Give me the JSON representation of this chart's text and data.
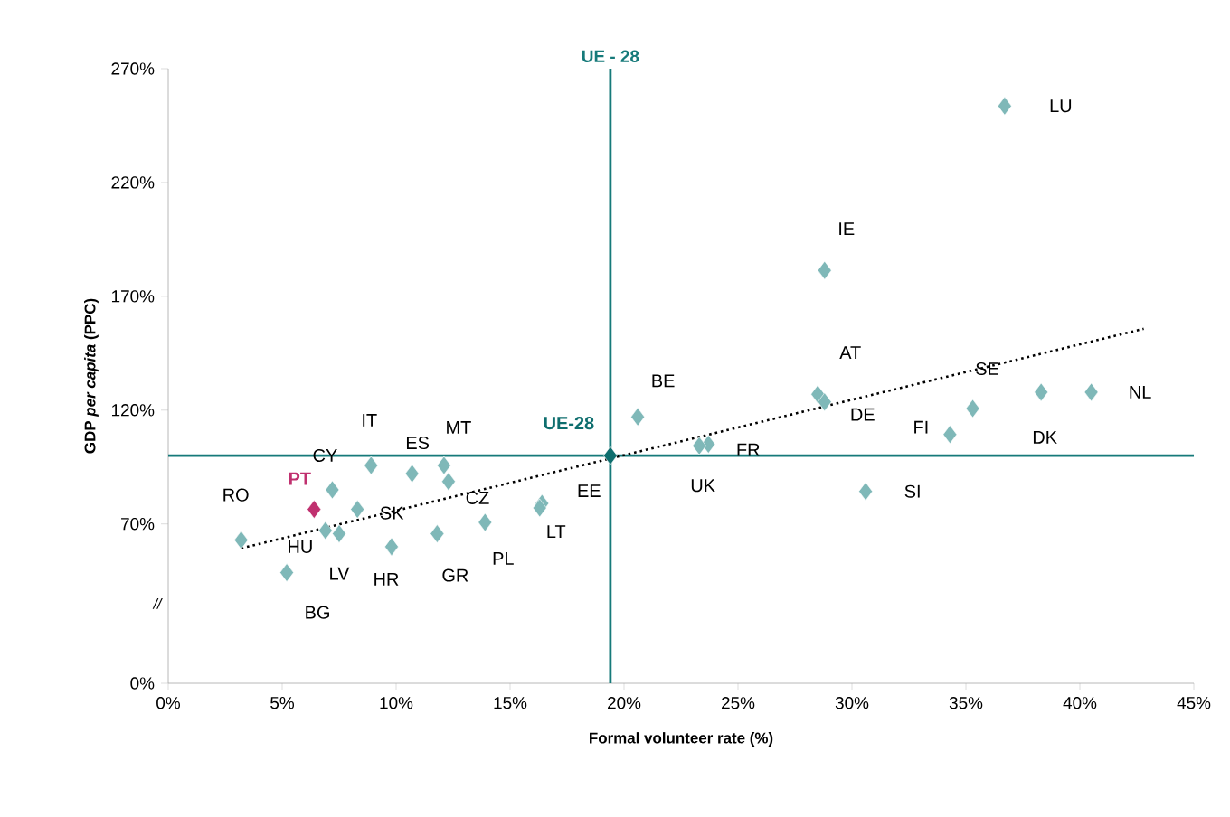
{
  "chart_data": {
    "type": "scatter",
    "xlabel": "Formal volunteer rate (%)",
    "ylabel": "GDP *per capita* (PPC)",
    "xlim": [
      0,
      45
    ],
    "ylim": [
      0,
      270
    ],
    "xticks": [
      {
        "value": 0,
        "label": "0%"
      },
      {
        "value": 5,
        "label": "5%"
      },
      {
        "value": 10,
        "label": "10%"
      },
      {
        "value": 15,
        "label": "15%"
      },
      {
        "value": 20,
        "label": "20%"
      },
      {
        "value": 25,
        "label": "25%"
      },
      {
        "value": 30,
        "label": "30%"
      },
      {
        "value": 35,
        "label": "35%"
      },
      {
        "value": 40,
        "label": "40%"
      },
      {
        "value": 45,
        "label": "45%"
      }
    ],
    "yticks": [
      {
        "value": 0,
        "label": "0%"
      },
      {
        "value": 70,
        "label": "70%"
      },
      {
        "value": 120,
        "label": "120%"
      },
      {
        "value": 170,
        "label": "170%"
      },
      {
        "value": 220,
        "label": "220%"
      },
      {
        "value": 270,
        "label": "270%"
      }
    ],
    "marker": "diamond",
    "grid": false,
    "legend": false,
    "series": [
      {
        "color": "#7fb8b8",
        "x": [
          36.7,
          28.8,
          20.6,
          28.5,
          28.8,
          35.3,
          38.3,
          40.5,
          34.3,
          23.7,
          23.3,
          30.6,
          8.9,
          10.7,
          12.1,
          12.3,
          7.2,
          8.3,
          6.9,
          7.5,
          5.2,
          9.8,
          11.8,
          13.9,
          3.2,
          16.4,
          16.3
        ],
        "values": [
          253.6,
          181.4,
          117,
          127,
          123.6,
          120.7,
          127.9,
          127.9,
          109.3,
          105,
          104.3,
          84.3,
          95.7,
          92.1,
          95.7,
          88.6,
          85,
          76.4,
          67.1,
          65.7,
          48.6,
          60,
          65.7,
          70.7,
          62.9,
          79,
          77
        ]
      },
      {
        "name": "PT",
        "color": "#c0306f",
        "x": [
          6.4
        ],
        "values": [
          76.4
        ]
      },
      {
        "name": "UE-28",
        "color": "#0e6e6e",
        "x": [
          19.4
        ],
        "values": [
          100
        ]
      },
      {
        "type": "line",
        "color": "#000000",
        "line_style": "dotted",
        "marker": "none",
        "x": [
          3.2,
          42.8
        ],
        "values": [
          59.3,
          155.7
        ]
      }
    ],
    "ref_lines": [
      {
        "axis": "x",
        "value": 19.4,
        "label": "UE - 28",
        "color": "#167a7a"
      },
      {
        "axis": "y",
        "value": 100,
        "color": "#167a7a"
      }
    ],
    "annotations": [
      {
        "text": "LU",
        "x": 36.7,
        "y": 253.6
      },
      {
        "text": "IE",
        "x": 28.8,
        "y": 181.4
      },
      {
        "text": "BE",
        "x": 20.6,
        "y": 117
      },
      {
        "text": "AT",
        "x": 28.5,
        "y": 127
      },
      {
        "text": "DE",
        "x": 28.8,
        "y": 123.6
      },
      {
        "text": "SE",
        "x": 35.3,
        "y": 120.7
      },
      {
        "text": "DK",
        "x": 38.3,
        "y": 127.9
      },
      {
        "text": "NL",
        "x": 40.5,
        "y": 127.9
      },
      {
        "text": "FI",
        "x": 34.3,
        "y": 109.3
      },
      {
        "text": "FR",
        "x": 23.7,
        "y": 105
      },
      {
        "text": "UK",
        "x": 23.3,
        "y": 104.3
      },
      {
        "text": "SI",
        "x": 30.6,
        "y": 84.3
      },
      {
        "text": "IT",
        "x": 8.9,
        "y": 95.7
      },
      {
        "text": "ES",
        "x": 10.7,
        "y": 92.1
      },
      {
        "text": "MT",
        "x": 12.1,
        "y": 95.7
      },
      {
        "text": "CZ",
        "x": 12.3,
        "y": 88.6
      },
      {
        "text": "CY",
        "x": 7.2,
        "y": 85
      },
      {
        "text": "SK",
        "x": 8.3,
        "y": 76.4
      },
      {
        "text": "HU",
        "x": 6.9,
        "y": 67.1
      },
      {
        "text": "LV",
        "x": 7.5,
        "y": 65.7
      },
      {
        "text": "BG",
        "x": 5.2,
        "y": 48.6
      },
      {
        "text": "HR",
        "x": 9.8,
        "y": 60
      },
      {
        "text": "GR",
        "x": 11.8,
        "y": 65.7
      },
      {
        "text": "PL",
        "x": 13.9,
        "y": 70.7
      },
      {
        "text": "RO",
        "x": 3.2,
        "y": 62.9
      },
      {
        "text": "EE",
        "x": 16.4,
        "y": 79
      },
      {
        "text": "LT",
        "x": 16.3,
        "y": 77
      },
      "//"
    ]
  }
}
